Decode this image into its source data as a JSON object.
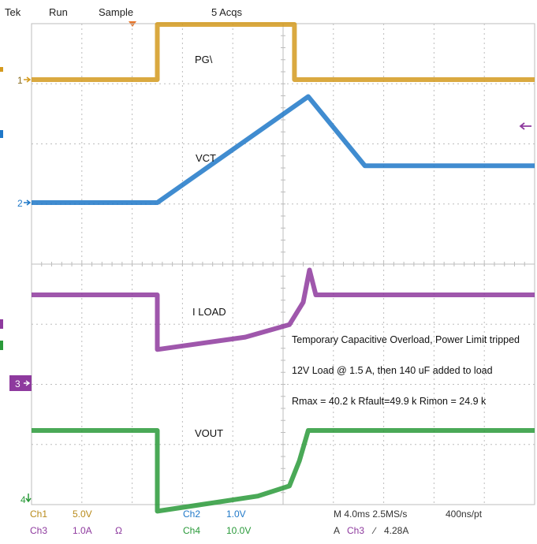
{
  "status_bar": {
    "brand": "Tek",
    "run_state": "Run",
    "mode": "Sample",
    "acquisitions": "5 Acqs"
  },
  "chart_data": {
    "type": "line",
    "title": "",
    "xlabel": "",
    "ylabel": "",
    "grid": true,
    "x_unit": "ms",
    "time_per_div_ms": 4.0,
    "divisions": {
      "x": 10,
      "y": 8
    },
    "xlim": [
      0,
      40
    ],
    "series": [
      {
        "name": "PG\\",
        "channel": "1",
        "color": "#d49a1e",
        "points": [
          [
            0,
            0.0
          ],
          [
            10.0,
            0.0
          ],
          [
            10.0,
            1.0
          ],
          [
            20.9,
            1.0
          ],
          [
            20.9,
            0.0
          ],
          [
            40,
            0.0
          ]
        ]
      },
      {
        "name": "VCT",
        "channel": "2",
        "color": "#1f78c8",
        "points": [
          [
            0,
            0.0
          ],
          [
            10.0,
            0.0
          ],
          [
            22.0,
            1.15
          ],
          [
            26.5,
            0.4
          ],
          [
            40,
            0.4
          ]
        ]
      },
      {
        "name": "I LOAD",
        "channel": "3",
        "color": "#8e3a9e",
        "points": [
          [
            0,
            0.0
          ],
          [
            10.0,
            0.0
          ],
          [
            10.0,
            -1.1
          ],
          [
            17.0,
            -0.85
          ],
          [
            20.5,
            -0.6
          ],
          [
            21.6,
            -0.15
          ],
          [
            22.1,
            0.5
          ],
          [
            22.6,
            0.0
          ],
          [
            40,
            0.0
          ]
        ]
      },
      {
        "name": "VOUT",
        "channel": "4",
        "color": "#2a9a3a",
        "points": [
          [
            0,
            0.0
          ],
          [
            10.0,
            0.0
          ],
          [
            10.0,
            -1.6
          ],
          [
            18.0,
            -1.3
          ],
          [
            20.5,
            -1.1
          ],
          [
            21.3,
            -0.6
          ],
          [
            22.0,
            0.0
          ],
          [
            40,
            0.0
          ]
        ]
      }
    ]
  },
  "annotations": {
    "line1": "Temporary Capacitive Overload, Power Limit tripped",
    "line2": "12V Load @ 1.5 A, then 140 uF added to load",
    "line3": "Rmax = 40.2 k  Rfault=49.9  k Rimon = 24.9 k"
  },
  "markers": {
    "ch1": "1",
    "ch2": "2",
    "ch3": "3",
    "ch4": "4"
  },
  "readout": {
    "ch1_label": "Ch1",
    "ch1_scale": "5.0V",
    "ch2_label": "Ch2",
    "ch2_scale": "1.0V",
    "ch3_label": "Ch3",
    "ch3_scale": "1.0A",
    "ch3_unit": "Ω",
    "ch4_label": "Ch4",
    "ch4_scale": "10.0V",
    "timebase": "M 4.0ms 2.5MS/s",
    "sample_interval": "400ns/pt",
    "trigger_label": "A",
    "trigger_channel": "Ch3",
    "trigger_slope": "∕",
    "trigger_level": "4.28A"
  },
  "colors": {
    "ch1": "#d49a1e",
    "ch2": "#1f78c8",
    "ch3": "#8e3a9e",
    "ch4": "#2a9a3a",
    "grid": "#bdbdbd"
  }
}
